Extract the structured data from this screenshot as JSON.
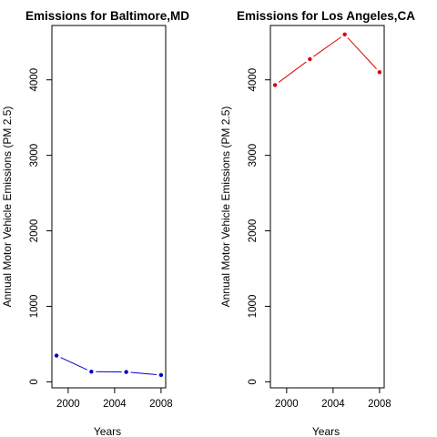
{
  "chart_data": [
    {
      "type": "line",
      "title": "Emissions for Baltimore,MD",
      "xlabel": "Years",
      "ylabel": "Annual Motor Vehicle Emissions (PM 2.5)",
      "xlim": [
        1998.6,
        2008.4
      ],
      "ylim": [
        -80,
        4720
      ],
      "x_ticks": [
        2000,
        2004,
        2008
      ],
      "y_ticks": [
        0,
        1000,
        2000,
        3000,
        4000
      ],
      "grid": false,
      "color": "#0000cc",
      "series": [
        {
          "x": [
            1999,
            2002,
            2005,
            2008
          ],
          "values": [
            347,
            134,
            130,
            89
          ]
        }
      ]
    },
    {
      "type": "line",
      "title": "Emissions for Los Angeles,CA",
      "xlabel": "Years",
      "ylabel": "Annual Motor Vehicle Emissions (PM 2.5)",
      "xlim": [
        1998.6,
        2008.4
      ],
      "ylim": [
        -80,
        4720
      ],
      "x_ticks": [
        2000,
        2004,
        2008
      ],
      "y_ticks": [
        0,
        1000,
        2000,
        3000,
        4000
      ],
      "grid": false,
      "color": "#dd0000",
      "series": [
        {
          "x": [
            1999,
            2002,
            2005,
            2008
          ],
          "values": [
            3931,
            4274,
            4601,
            4101
          ]
        }
      ]
    }
  ]
}
